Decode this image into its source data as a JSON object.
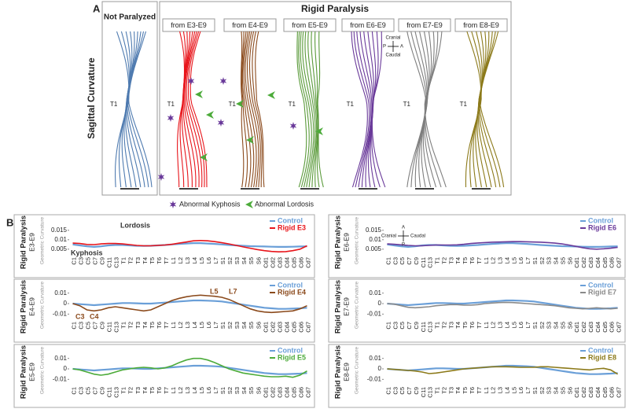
{
  "panel_a": {
    "label": "A",
    "ylabel": "Sagittal Curvature",
    "control_title": "Not Paralyzed",
    "control_color": "#4f7bb0",
    "group_title": "Rigid Paralysis",
    "columns": [
      {
        "title": "from E3-E9",
        "color": "#e8151b"
      },
      {
        "title": "from E4-E9",
        "color": "#8b4a1c"
      },
      {
        "title": "from E5-E9",
        "color": "#5a9a3a"
      },
      {
        "title": "from E6-E9",
        "color": "#6a3a9a"
      },
      {
        "title": "from E7-E9",
        "color": "#7f7f7f"
      },
      {
        "title": "from E8-E9",
        "color": "#8c7a1a"
      }
    ],
    "vertebra_label": "T1",
    "compass": {
      "up": "Cranial",
      "down": "Caudal",
      "left": "P",
      "right": "A"
    },
    "legend": [
      {
        "text": "Abnormal Kyphosis",
        "color": "#6a3a9a"
      },
      {
        "text": "Abnormal Lordosis",
        "color": "#4cab3a"
      }
    ]
  },
  "panel_b": {
    "label": "B",
    "compass": {
      "up": "A",
      "down": "P",
      "left": "Cranial",
      "right": "Caudal"
    }
  },
  "chart_data": [
    {
      "type": "line",
      "title": "Rigid Paralysis",
      "subtitle": "E3-E9",
      "ylabel": "Geometric Curvature",
      "ylim": [
        0.002,
        0.017
      ],
      "yticks": [
        0.015,
        0.01,
        0.005
      ],
      "categories": [
        "C1",
        "C3",
        "C5",
        "C7",
        "C9",
        "C11",
        "C13",
        "T1",
        "T2",
        "T3",
        "T4",
        "T5",
        "T6",
        "T7",
        "L1",
        "L2",
        "L3",
        "L4",
        "L5",
        "L6",
        "L7",
        "S1",
        "S2",
        "S3",
        "S4",
        "S5",
        "S6",
        "Cd1",
        "Cd2",
        "Cd3",
        "Cd4",
        "Cd5",
        "Cd6",
        "Cd7"
      ],
      "series": [
        {
          "name": "Control",
          "color": "#6a9fd8",
          "values": [
            0.0075,
            0.007,
            0.0065,
            0.0062,
            0.0065,
            0.007,
            0.0072,
            0.0072,
            0.007,
            0.0068,
            0.0067,
            0.0068,
            0.007,
            0.0072,
            0.0075,
            0.0078,
            0.008,
            0.0082,
            0.0082,
            0.008,
            0.0078,
            0.0075,
            0.0072,
            0.007,
            0.0068,
            0.0066,
            0.0065,
            0.0064,
            0.0063,
            0.0062,
            0.0062,
            0.0063,
            0.0064,
            0.0065
          ]
        },
        {
          "name": "Rigid E3",
          "color": "#e8151b",
          "values": [
            0.0082,
            0.008,
            0.0075,
            0.0074,
            0.0078,
            0.008,
            0.008,
            0.0078,
            0.0074,
            0.007,
            0.0068,
            0.0068,
            0.007,
            0.0072,
            0.0076,
            0.0082,
            0.0088,
            0.0094,
            0.0096,
            0.0094,
            0.009,
            0.0084,
            0.0078,
            0.007,
            0.0062,
            0.0055,
            0.0048,
            0.0042,
            0.0038,
            0.0036,
            0.0037,
            0.0042,
            0.005,
            0.0068
          ]
        }
      ],
      "annotations": [
        {
          "text": "Lordosis"
        },
        {
          "text": "Kyphosis"
        }
      ]
    },
    {
      "type": "line",
      "title": "Rigid Paralysis",
      "subtitle": "E4-E9",
      "ylabel": "Geometric Curvature",
      "ylim": [
        -0.015,
        0.012
      ],
      "yticks": [
        0.01,
        0,
        -0.01
      ],
      "categories": [
        "C1",
        "C3",
        "C5",
        "C7",
        "C9",
        "C11",
        "C13",
        "T1",
        "T2",
        "T3",
        "T4",
        "T5",
        "T6",
        "T7",
        "L1",
        "L2",
        "L3",
        "L4",
        "L5",
        "L6",
        "L7",
        "S1",
        "S2",
        "S3",
        "S4",
        "S5",
        "S6",
        "Cd1",
        "Cd2",
        "Cd3",
        "Cd4",
        "Cd5",
        "Cd6",
        "Cd7"
      ],
      "series": [
        {
          "name": "Control",
          "color": "#6a9fd8",
          "values": [
            0,
            -0.0005,
            -0.001,
            -0.0015,
            -0.001,
            -0.0005,
            0,
            0.0005,
            0.0005,
            0.0003,
            0,
            0,
            0.0005,
            0.001,
            0.0015,
            0.002,
            0.0025,
            0.003,
            0.003,
            0.0028,
            0.0025,
            0.002,
            0.001,
            0,
            -0.001,
            -0.002,
            -0.003,
            -0.004,
            -0.0045,
            -0.005,
            -0.005,
            -0.0048,
            -0.0045,
            -0.004
          ]
        },
        {
          "name": "Rigid E4",
          "color": "#8b4a1c",
          "values": [
            0,
            -0.002,
            -0.006,
            -0.007,
            -0.006,
            -0.004,
            -0.003,
            -0.004,
            -0.005,
            -0.006,
            -0.007,
            -0.006,
            -0.003,
            0,
            0.003,
            0.005,
            0.0065,
            0.0075,
            0.008,
            0.0075,
            0.007,
            0.006,
            0.004,
            0.001,
            -0.002,
            -0.005,
            -0.007,
            -0.008,
            -0.0085,
            -0.008,
            -0.0075,
            -0.007,
            -0.005,
            -0.002
          ]
        }
      ],
      "annotations": [
        {
          "text": "L5"
        },
        {
          "text": "L7"
        },
        {
          "text": "C3"
        },
        {
          "text": "C4"
        }
      ]
    },
    {
      "type": "line",
      "title": "Rigid Paralysis",
      "subtitle": "E5-E9",
      "ylabel": "Geometric Curvature",
      "ylim": [
        -0.015,
        0.012
      ],
      "yticks": [
        0.01,
        0,
        -0.01
      ],
      "categories": [
        "C1",
        "C3",
        "C5",
        "C7",
        "C9",
        "C11",
        "C13",
        "T1",
        "T2",
        "T3",
        "T4",
        "T5",
        "T6",
        "T7",
        "L1",
        "L2",
        "L3",
        "L4",
        "L5",
        "L6",
        "L7",
        "S1",
        "S2",
        "S3",
        "S4",
        "S5",
        "S6",
        "Cd1",
        "Cd2",
        "Cd3",
        "Cd4",
        "Cd5",
        "Cd6",
        "Cd7"
      ],
      "series": [
        {
          "name": "Control",
          "color": "#6a9fd8",
          "values": [
            0,
            -0.0005,
            -0.001,
            -0.0015,
            -0.001,
            -0.0005,
            0,
            0.0005,
            0.0005,
            0.0003,
            0,
            0,
            0.0005,
            0.001,
            0.0015,
            0.002,
            0.0025,
            0.003,
            0.003,
            0.0028,
            0.0025,
            0.002,
            0.001,
            0,
            -0.001,
            -0.002,
            -0.003,
            -0.004,
            -0.0045,
            -0.005,
            -0.005,
            -0.0048,
            -0.0045,
            -0.004
          ]
        },
        {
          "name": "Rigid E5",
          "color": "#4cab3a",
          "values": [
            0,
            -0.001,
            -0.003,
            -0.005,
            -0.006,
            -0.005,
            -0.003,
            -0.001,
            0,
            0.001,
            0.0015,
            0.001,
            0,
            0.001,
            0.003,
            0.006,
            0.0085,
            0.01,
            0.01,
            0.0085,
            0.006,
            0.003,
            0,
            -0.002,
            -0.004,
            -0.005,
            -0.006,
            -0.007,
            -0.0075,
            -0.0075,
            -0.007,
            -0.008,
            -0.006,
            -0.002
          ]
        }
      ],
      "annotations": []
    },
    {
      "type": "line",
      "title": "Rigid Paralysis",
      "subtitle": "E6-E9",
      "ylabel": "Geometric Curvature",
      "ylim": [
        0.002,
        0.017
      ],
      "yticks": [
        0.015,
        0.01,
        0.005
      ],
      "categories": [
        "C1",
        "C3",
        "C5",
        "C7",
        "C9",
        "C11",
        "C13",
        "T1",
        "T2",
        "T3",
        "T4",
        "T5",
        "T6",
        "T7",
        "L1",
        "L2",
        "L3",
        "L4",
        "L5",
        "L6",
        "L7",
        "S1",
        "S2",
        "S3",
        "S4",
        "S5",
        "S6",
        "Cd1",
        "Cd2",
        "Cd3",
        "Cd4",
        "Cd5",
        "Cd6",
        "Cd7"
      ],
      "series": [
        {
          "name": "Control",
          "color": "#6a9fd8",
          "values": [
            0.0075,
            0.007,
            0.0065,
            0.0062,
            0.0065,
            0.007,
            0.0072,
            0.0072,
            0.007,
            0.0068,
            0.0067,
            0.0068,
            0.007,
            0.0072,
            0.0075,
            0.0078,
            0.008,
            0.0082,
            0.0082,
            0.008,
            0.0078,
            0.0075,
            0.0072,
            0.007,
            0.0068,
            0.0066,
            0.0065,
            0.0064,
            0.0063,
            0.0062,
            0.0062,
            0.0063,
            0.0064,
            0.0065
          ]
        },
        {
          "name": "Rigid E6",
          "color": "#6a3a9a",
          "values": [
            0.0078,
            0.0076,
            0.0073,
            0.007,
            0.0068,
            0.0068,
            0.007,
            0.0072,
            0.0072,
            0.0072,
            0.0073,
            0.0076,
            0.008,
            0.0083,
            0.0085,
            0.0087,
            0.0088,
            0.0089,
            0.009,
            0.009,
            0.0089,
            0.0088,
            0.0087,
            0.0085,
            0.0082,
            0.0078,
            0.0072,
            0.0065,
            0.0058,
            0.0052,
            0.005,
            0.0052,
            0.0055,
            0.006
          ]
        }
      ],
      "annotations": []
    },
    {
      "type": "line",
      "title": "Rigid Paralysis",
      "subtitle": "E7-E9",
      "ylabel": "Geometric Curvature",
      "ylim": [
        -0.015,
        0.012
      ],
      "yticks": [
        0.01,
        0,
        -0.01
      ],
      "categories": [
        "C1",
        "C3",
        "C5",
        "C7",
        "C9",
        "C11",
        "C13",
        "T1",
        "T2",
        "T3",
        "T4",
        "T5",
        "T6",
        "T7",
        "L1",
        "L2",
        "L3",
        "L4",
        "L5",
        "L6",
        "L7",
        "S1",
        "S2",
        "S3",
        "S4",
        "S5",
        "S6",
        "Cd1",
        "Cd2",
        "Cd3",
        "Cd4",
        "Cd5",
        "Cd6",
        "Cd7"
      ],
      "series": [
        {
          "name": "Control",
          "color": "#6a9fd8",
          "values": [
            0,
            -0.0005,
            -0.001,
            -0.0015,
            -0.001,
            -0.0005,
            0,
            0.0005,
            0.0005,
            0.0003,
            0,
            0,
            0.0005,
            0.001,
            0.0015,
            0.002,
            0.0025,
            0.003,
            0.003,
            0.0028,
            0.0025,
            0.002,
            0.001,
            0,
            -0.001,
            -0.002,
            -0.003,
            -0.004,
            -0.0045,
            -0.005,
            -0.005,
            -0.0048,
            -0.0045,
            -0.004
          ]
        },
        {
          "name": "Rigid E7",
          "color": "#8a8a8a",
          "values": [
            0,
            -0.0005,
            -0.002,
            -0.0035,
            -0.004,
            -0.0035,
            -0.003,
            -0.002,
            -0.0015,
            -0.001,
            -0.001,
            -0.0015,
            -0.0015,
            -0.001,
            0,
            0.0005,
            0.001,
            0.0012,
            0.001,
            0.0005,
            0,
            -0.0005,
            -0.001,
            -0.0015,
            -0.002,
            -0.003,
            -0.004,
            -0.0045,
            -0.005,
            -0.0045,
            -0.004,
            -0.0045,
            -0.005,
            -0.0045
          ]
        }
      ],
      "annotations": []
    },
    {
      "type": "line",
      "title": "Rigid Paralysis",
      "subtitle": "E8-E9",
      "ylabel": "Geometric Curvature",
      "ylim": [
        -0.015,
        0.012
      ],
      "yticks": [
        0.01,
        0,
        -0.01
      ],
      "categories": [
        "C1",
        "C3",
        "C5",
        "C7",
        "C9",
        "C11",
        "C13",
        "T1",
        "T2",
        "T3",
        "T4",
        "T5",
        "T6",
        "T7",
        "L1",
        "L2",
        "L3",
        "L4",
        "L5",
        "L6",
        "L7",
        "S1",
        "S2",
        "S3",
        "S4",
        "S5",
        "S6",
        "Cd1",
        "Cd2",
        "Cd3",
        "Cd4",
        "Cd5",
        "Cd6",
        "Cd7"
      ],
      "series": [
        {
          "name": "Control",
          "color": "#6a9fd8",
          "values": [
            0,
            -0.0005,
            -0.001,
            -0.0015,
            -0.001,
            -0.0005,
            0,
            0.0005,
            0.0005,
            0.0003,
            0,
            0,
            0.0005,
            0.001,
            0.0015,
            0.002,
            0.0025,
            0.003,
            0.003,
            0.0028,
            0.0025,
            0.002,
            0.001,
            0,
            -0.001,
            -0.002,
            -0.003,
            -0.004,
            -0.0045,
            -0.005,
            -0.005,
            -0.0048,
            -0.0045,
            -0.004
          ]
        },
        {
          "name": "Rigid E8",
          "color": "#8c7a1a",
          "values": [
            0,
            -0.0005,
            -0.001,
            -0.0015,
            -0.002,
            -0.003,
            -0.0045,
            -0.004,
            -0.003,
            -0.002,
            -0.001,
            0,
            0.0005,
            0.001,
            0.0015,
            0.002,
            0.002,
            0.002,
            0.0018,
            0.0015,
            0.0015,
            0.0015,
            0.002,
            0.002,
            0.0015,
            0.001,
            0.0005,
            0,
            -0.0005,
            -0.001,
            0,
            0.0005,
            -0.001,
            -0.005
          ]
        }
      ],
      "annotations": []
    }
  ]
}
